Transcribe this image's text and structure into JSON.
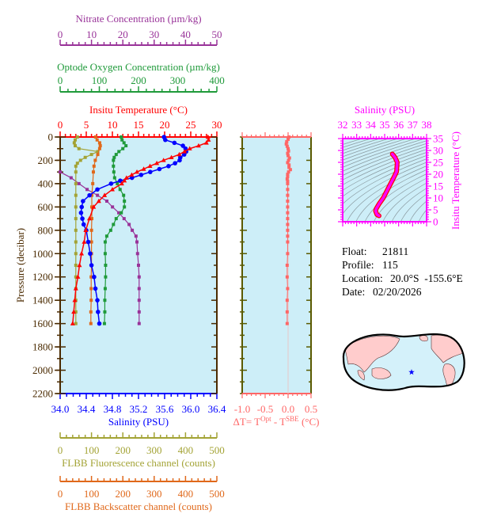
{
  "chart_data": {
    "type": "line",
    "pressure_axis": {
      "label": "Pressure (decibar)",
      "range": [
        0,
        2200
      ],
      "reversed": true,
      "ticks": [
        "0",
        "200",
        "400",
        "600",
        "800",
        "1000",
        "1200",
        "1400",
        "1600",
        "1800",
        "2000",
        "2200"
      ],
      "color": "#4a2a00"
    },
    "background": "#cdeef8",
    "series": [
      {
        "key": "temperature",
        "name": "Insitu Temperature (°C)",
        "axis_position": "top",
        "range": [
          0,
          30
        ],
        "ticks": [
          "0",
          "5",
          "10",
          "15",
          "20",
          "25",
          "30"
        ],
        "color": "#ff0000",
        "marker": "triangle",
        "pressure": [
          0,
          25,
          50,
          75,
          100,
          125,
          150,
          175,
          200,
          225,
          250,
          275,
          300,
          325,
          350,
          375,
          400,
          450,
          500,
          550,
          600,
          700,
          800,
          900,
          1000,
          1100,
          1200,
          1300,
          1400,
          1500,
          1600
        ],
        "values": [
          28.3,
          28.4,
          28.0,
          26.5,
          24.8,
          23.8,
          22.8,
          21.3,
          19.8,
          18.5,
          17.2,
          16.0,
          14.7,
          13.7,
          12.7,
          12.3,
          11.8,
          10.0,
          8.5,
          7.4,
          6.4,
          5.6,
          4.9,
          4.6,
          4.1,
          3.7,
          3.4,
          3.0,
          2.8,
          2.6,
          2.4
        ]
      },
      {
        "key": "salinity",
        "name": "Salinity (PSU)",
        "axis_position": "bottom",
        "range": [
          34.0,
          36.4
        ],
        "ticks": [
          "34.0",
          "34.4",
          "34.8",
          "35.2",
          "35.6",
          "36.0",
          "36.4"
        ],
        "color": "#0000ff",
        "marker": "circle",
        "pressure": [
          0,
          25,
          50,
          75,
          100,
          125,
          150,
          175,
          200,
          225,
          250,
          275,
          300,
          325,
          350,
          375,
          400,
          450,
          500,
          550,
          600,
          650,
          700,
          750,
          800,
          900,
          1000,
          1100,
          1200,
          1300,
          1400,
          1500,
          1600
        ],
        "values": [
          35.59,
          35.61,
          35.75,
          35.88,
          35.92,
          35.93,
          35.9,
          35.84,
          35.83,
          35.76,
          35.66,
          35.52,
          35.38,
          35.24,
          35.1,
          34.92,
          34.78,
          34.57,
          34.45,
          34.35,
          34.33,
          34.32,
          34.34,
          34.36,
          34.4,
          34.43,
          34.46,
          34.48,
          34.52,
          34.54,
          34.57,
          34.58,
          34.6
        ]
      },
      {
        "key": "oxygen",
        "name": "Optode Oxygen Concentration (µm/kg)",
        "axis_position": "top",
        "range": [
          0,
          400
        ],
        "ticks": [
          "0",
          "100",
          "200",
          "300",
          "400"
        ],
        "color": "#1f9a3a",
        "marker": "square",
        "pressure": [
          0,
          25,
          50,
          75,
          100,
          125,
          150,
          175,
          200,
          250,
          300,
          350,
          400,
          450,
          500,
          550,
          600,
          650,
          700,
          750,
          800,
          850,
          900,
          1000,
          1100,
          1200,
          1300,
          1400,
          1500,
          1600
        ],
        "values": [
          156,
          158,
          163,
          168,
          160,
          150,
          143,
          138,
          136,
          136,
          137,
          139,
          146,
          153,
          162,
          164,
          164,
          156,
          143,
          136,
          129,
          119,
          115,
          115,
          116,
          116,
          115,
          114,
          114,
          113
        ]
      },
      {
        "key": "nitrate",
        "name": "Nitrate Concentration (µm/kg)",
        "axis_position": "top",
        "range": [
          0,
          50
        ],
        "ticks": [
          "0",
          "10",
          "20",
          "30",
          "40",
          "50"
        ],
        "color": "#993399",
        "marker": "square",
        "pressure": [
          300,
          350,
          400,
          450,
          500,
          550,
          600,
          650,
          700,
          750,
          800,
          850,
          900,
          1000,
          1100,
          1200,
          1300,
          1400,
          1500,
          1600
        ],
        "values": [
          0,
          3.5,
          6.0,
          8.6,
          11.9,
          14.9,
          16.7,
          18.7,
          20.4,
          22.0,
          23.0,
          24.2,
          24.5,
          24.7,
          25.0,
          25.2,
          25.2,
          25.2,
          25.2,
          25.2
        ]
      },
      {
        "key": "fluorescence",
        "name": "FLBB Fluorescence channel (counts)",
        "axis_position": "bottom",
        "range": [
          0,
          500
        ],
        "ticks": [
          "0",
          "100",
          "200",
          "300",
          "400",
          "500"
        ],
        "color": "#a3a335",
        "marker": "square",
        "pressure": [
          0,
          25,
          50,
          75,
          100,
          125,
          150,
          175,
          200,
          225,
          250,
          300,
          400,
          500,
          600,
          700,
          800,
          900,
          1000,
          1100,
          1200,
          1300,
          1400,
          1500,
          1600
        ],
        "values": [
          55,
          48,
          45,
          48,
          60,
          120,
          100,
          80,
          65,
          55,
          50,
          50,
          50,
          50,
          50,
          50,
          50,
          50,
          50,
          50,
          50,
          50,
          50,
          50,
          50
        ]
      },
      {
        "key": "backscatter",
        "name": "FLBB Backscatter channel (counts)",
        "axis_position": "bottom",
        "range": [
          0,
          500
        ],
        "ticks": [
          "0",
          "100",
          "200",
          "300",
          "400",
          "500"
        ],
        "color": "#e0681a",
        "marker": "square",
        "pressure": [
          0,
          25,
          50,
          75,
          100,
          150,
          200,
          250,
          300,
          400,
          500,
          600,
          700,
          800,
          900,
          1000,
          1100,
          1200,
          1300,
          1400,
          1500,
          1600
        ],
        "values": [
          113,
          118,
          126,
          128,
          126,
          120,
          112,
          108,
          106,
          104,
          101,
          101,
          101,
          100,
          100,
          100,
          100,
          99,
          99,
          99,
          98,
          98
        ]
      }
    ],
    "delta_t": {
      "label_prefix": "ΔT= T",
      "label_sup1": "Opt",
      "label_mid": " - T",
      "label_sup2": "SBE",
      "label_suffix": " (°C)",
      "range": [
        -1.0,
        0.5
      ],
      "ticks": [
        "-1.0",
        "-0.5",
        "0.0",
        "0.5"
      ],
      "color": "#ff6666",
      "pressure": [
        0,
        20,
        40,
        60,
        80,
        100,
        120,
        140,
        160,
        180,
        200,
        220,
        240,
        260,
        280,
        300,
        320,
        340,
        360,
        380,
        400,
        450,
        500,
        550,
        600,
        650,
        700,
        750,
        800,
        850,
        900,
        1000,
        1100,
        1200,
        1300,
        1400,
        1500,
        1600
      ],
      "values": [
        0.02,
        0.0,
        -0.03,
        -0.04,
        -0.02,
        0.0,
        0.01,
        -0.01,
        0.0,
        0.03,
        0.01,
        -0.01,
        0.02,
        0.02,
        0.05,
        0.01,
        -0.01,
        -0.01,
        -0.02,
        -0.01,
        -0.01,
        -0.01,
        -0.01,
        -0.01,
        -0.01,
        -0.01,
        -0.01,
        -0.01,
        -0.01,
        -0.01,
        -0.01,
        -0.01,
        -0.02,
        -0.02,
        -0.01,
        -0.02,
        -0.02,
        -0.02
      ]
    },
    "ts_diagram": {
      "type": "line",
      "xlabel": "Salinity (PSU)",
      "ylabel": "Insitu Temperature (°C)",
      "xlim": [
        32,
        38
      ],
      "ylim": [
        0,
        35
      ],
      "xticks": [
        "32",
        "33",
        "34",
        "35",
        "36",
        "37",
        "38"
      ],
      "yticks": [
        "0",
        "5",
        "10",
        "15",
        "20",
        "25",
        "30",
        "35"
      ],
      "color": "#ff00ff",
      "salinity": [
        35.55,
        35.75,
        35.9,
        35.85,
        35.6,
        35.25,
        34.9,
        34.6,
        34.4,
        34.35,
        34.45,
        34.6
      ],
      "temperature": [
        28.5,
        27,
        25,
        21,
        18,
        14,
        10,
        7.5,
        5.5,
        4.5,
        3,
        2.5
      ]
    }
  },
  "info": {
    "float_label": "Float:",
    "float_value": "21811",
    "profile_label": "Profile:",
    "profile_value": "115",
    "location_label": "Location:",
    "location_value": "20.0°S  -155.6°E",
    "date_label": "Date:",
    "date_value": "02/20/2026"
  },
  "map": {
    "marker": "star-icon",
    "marker_color": "#0000ff",
    "land_color": "#ffcccc",
    "ocean_color": "#d4f1fa"
  }
}
